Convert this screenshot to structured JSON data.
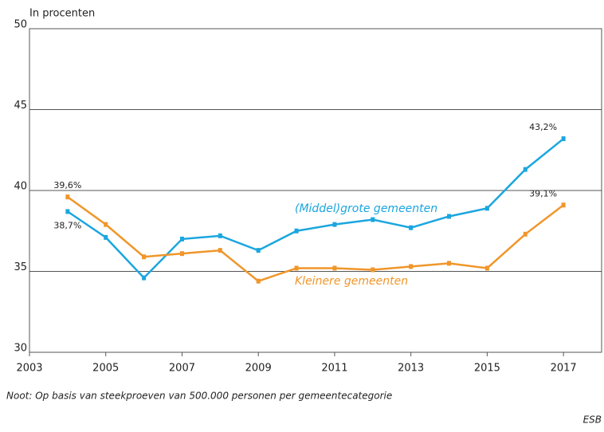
{
  "chart_data": {
    "type": "line",
    "y_label": "In procenten",
    "note": "Noot: Op basis van steekproeven van 500.000 personen per gemeentecategorie",
    "source": "ESB",
    "x": [
      2004,
      2005,
      2006,
      2007,
      2008,
      2009,
      2010,
      2011,
      2012,
      2013,
      2014,
      2015,
      2016,
      2017
    ],
    "series": [
      {
        "name": "(Middel)grote gemeenten",
        "color": "#1ba6df",
        "values": [
          38.7,
          37.1,
          34.6,
          37.0,
          37.2,
          36.3,
          37.5,
          37.9,
          38.2,
          37.7,
          38.4,
          38.9,
          41.3,
          43.2
        ],
        "value_labels": [
          "38,7%",
          null,
          null,
          null,
          null,
          null,
          null,
          null,
          null,
          null,
          null,
          null,
          null,
          "43,2%"
        ]
      },
      {
        "name": "Kleinere gemeenten",
        "color": "#f0962a",
        "values": [
          39.6,
          37.9,
          35.9,
          36.1,
          36.3,
          34.4,
          35.2,
          35.2,
          35.1,
          35.3,
          35.5,
          35.2,
          37.3,
          39.1
        ],
        "value_labels": [
          "39,6%",
          null,
          null,
          null,
          null,
          null,
          null,
          null,
          null,
          null,
          null,
          null,
          null,
          "39,1%"
        ]
      }
    ],
    "xlim": [
      2003,
      2018
    ],
    "xticks": [
      2003,
      2005,
      2007,
      2009,
      2011,
      2013,
      2015,
      2017
    ],
    "ylim": [
      30,
      50
    ],
    "yticks": [
      30,
      35,
      40,
      45,
      50
    ],
    "grid": true
  }
}
